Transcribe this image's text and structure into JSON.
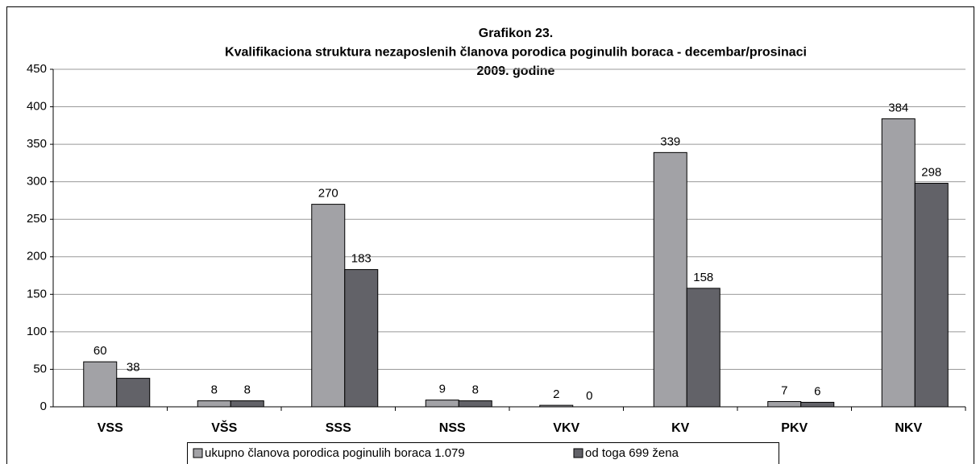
{
  "chart_data": {
    "type": "bar",
    "title": [
      "Grafikon 23.",
      "Kvalifikaciona struktura nezaposlenih članova porodica poginulih boraca  - decembar/prosinaci",
      "2009. godine"
    ],
    "categories": [
      "VSS",
      "VŠS",
      "SSS",
      "NSS",
      "VKV",
      "KV",
      "PKV",
      "NKV"
    ],
    "series": [
      {
        "name": "ukupno članova porodica poginulih boraca 1.079",
        "color": "#a2a2a6",
        "values": [
          60,
          8,
          270,
          9,
          2,
          339,
          7,
          384
        ]
      },
      {
        "name": "od toga 699 žena",
        "color": "#626268",
        "values": [
          38,
          8,
          183,
          8,
          0,
          158,
          6,
          298
        ]
      }
    ],
    "ylim": [
      0,
      450
    ],
    "yticks": [
      0,
      50,
      100,
      150,
      200,
      250,
      300,
      350,
      400,
      450
    ],
    "grid": true,
    "legend": "bottom"
  }
}
